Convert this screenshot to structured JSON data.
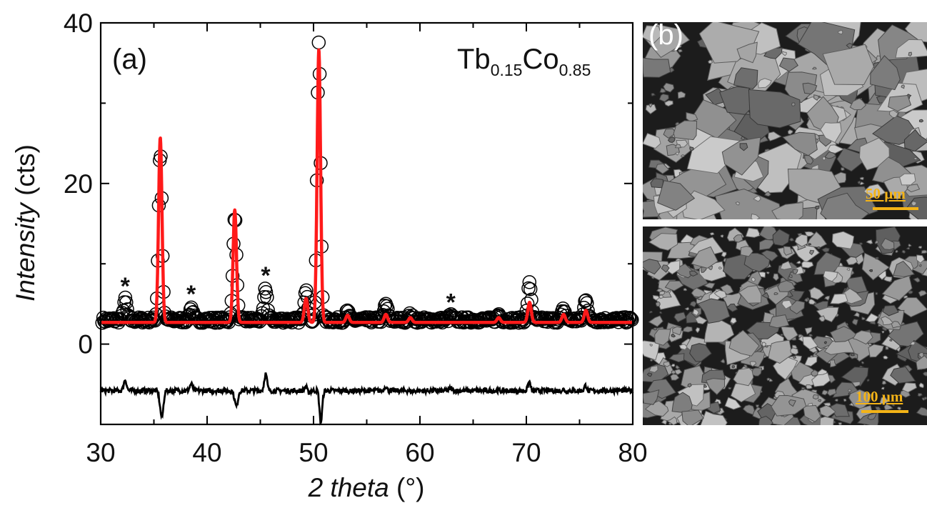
{
  "chart_data": {
    "type": "line",
    "panel_label": "(a)",
    "compound": {
      "base1": "Tb",
      "sub1": "0.15",
      "base2": "Co",
      "sub2": "0.85"
    },
    "xlabel_main": "2 theta",
    "xlabel_unit": " (°)",
    "ylabel_main": "Intensity",
    "ylabel_unit": " (cts)",
    "xlim": [
      30,
      80
    ],
    "ylim": [
      -10,
      40
    ],
    "xticks": [
      30,
      40,
      50,
      60,
      70,
      80
    ],
    "yticks": [
      0,
      20,
      40
    ],
    "background_level": 3.0,
    "peaks": [
      {
        "x": 32.3,
        "observed": 5.5,
        "calculated": 0,
        "impurity": true
      },
      {
        "x": 35.6,
        "observed": 24.0,
        "calculated": 26.0,
        "impurity": false
      },
      {
        "x": 38.5,
        "observed": 4.5,
        "calculated": 0,
        "impurity": true
      },
      {
        "x": 42.6,
        "observed": 16.0,
        "calculated": 17.0,
        "impurity": false
      },
      {
        "x": 45.5,
        "observed": 6.8,
        "calculated": 0,
        "impurity": true
      },
      {
        "x": 49.3,
        "observed": 7.0,
        "calculated": 6.0,
        "impurity": false
      },
      {
        "x": 50.5,
        "observed": 37.5,
        "calculated": 37.0,
        "impurity": false
      },
      {
        "x": 53.2,
        "observed": 4.0,
        "calculated": 3.9,
        "impurity": false
      },
      {
        "x": 56.8,
        "observed": 5.0,
        "calculated": 4.0,
        "impurity": false
      },
      {
        "x": 59.1,
        "observed": 3.6,
        "calculated": 3.6,
        "impurity": false
      },
      {
        "x": 62.9,
        "observed": 3.5,
        "calculated": 0,
        "impurity": true
      },
      {
        "x": 67.4,
        "observed": 3.7,
        "calculated": 3.6,
        "impurity": false
      },
      {
        "x": 70.3,
        "observed": 7.5,
        "calculated": 5.5,
        "impurity": false
      },
      {
        "x": 73.5,
        "observed": 4.3,
        "calculated": 4.0,
        "impurity": false
      },
      {
        "x": 75.6,
        "observed": 5.7,
        "calculated": 4.5,
        "impurity": false
      }
    ],
    "difference_offset": -5.8,
    "impurity_marker": "*",
    "series": [
      {
        "role": "observed",
        "marker": "circle",
        "color": "#000000"
      },
      {
        "role": "calculated",
        "color": "#ff1a1a"
      },
      {
        "role": "difference",
        "color": "#000000"
      }
    ]
  },
  "sem_images": [
    {
      "panel_label": "(b)",
      "scale_label": "50 µm"
    },
    {
      "panel_label": "",
      "scale_label": "100 µm"
    }
  ],
  "colors": {
    "calculated": "#ff1a1a",
    "scale": "#f3b317",
    "axis": "#000000"
  }
}
